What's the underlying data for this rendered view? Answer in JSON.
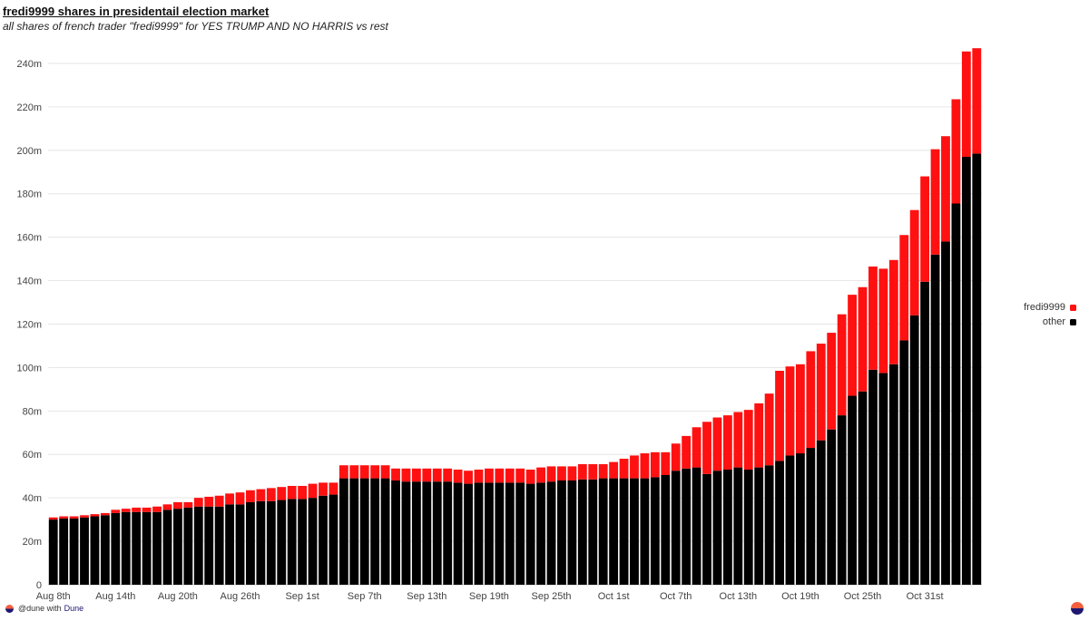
{
  "chart_data": {
    "type": "bar",
    "stacked": true,
    "title": "fredi9999 shares in presidentail election market",
    "subtitle": "all shares of french trader \"fredi9999\" for YES TRUMP AND NO HARRIS vs rest",
    "xlabel": "",
    "ylabel": "",
    "ylim": [
      0,
      250
    ],
    "y_unit": "m",
    "grid": true,
    "legend_position": "right",
    "yticks": [
      "0",
      "20m",
      "40m",
      "60m",
      "80m",
      "100m",
      "120m",
      "140m",
      "160m",
      "180m",
      "200m",
      "220m",
      "240m"
    ],
    "xticks": [
      "Aug 8th",
      "Aug 14th",
      "Aug 20th",
      "Aug 26th",
      "Sep 1st",
      "Sep 7th",
      "Sep 13th",
      "Sep 19th",
      "Sep 25th",
      "Oct 1st",
      "Oct 7th",
      "Oct 13th",
      "Oct 19th",
      "Oct 25th",
      "Oct 31st"
    ],
    "categories": [
      "2024-08-08",
      "2024-08-09",
      "2024-08-10",
      "2024-08-11",
      "2024-08-12",
      "2024-08-13",
      "2024-08-14",
      "2024-08-15",
      "2024-08-16",
      "2024-08-17",
      "2024-08-18",
      "2024-08-19",
      "2024-08-20",
      "2024-08-21",
      "2024-08-22",
      "2024-08-23",
      "2024-08-24",
      "2024-08-25",
      "2024-08-26",
      "2024-08-27",
      "2024-08-28",
      "2024-08-29",
      "2024-08-30",
      "2024-08-31",
      "2024-09-01",
      "2024-09-02",
      "2024-09-03",
      "2024-09-04",
      "2024-09-05",
      "2024-09-06",
      "2024-09-07",
      "2024-09-08",
      "2024-09-09",
      "2024-09-10",
      "2024-09-11",
      "2024-09-12",
      "2024-09-13",
      "2024-09-14",
      "2024-09-15",
      "2024-09-16",
      "2024-09-17",
      "2024-09-18",
      "2024-09-19",
      "2024-09-20",
      "2024-09-21",
      "2024-09-22",
      "2024-09-23",
      "2024-09-24",
      "2024-09-25",
      "2024-09-26",
      "2024-09-27",
      "2024-09-28",
      "2024-09-29",
      "2024-09-30",
      "2024-10-01",
      "2024-10-02",
      "2024-10-03",
      "2024-10-04",
      "2024-10-05",
      "2024-10-06",
      "2024-10-07",
      "2024-10-08",
      "2024-10-09",
      "2024-10-10",
      "2024-10-11",
      "2024-10-12",
      "2024-10-13",
      "2024-10-14",
      "2024-10-15",
      "2024-10-16",
      "2024-10-17",
      "2024-10-18",
      "2024-10-19",
      "2024-10-20",
      "2024-10-21",
      "2024-10-22",
      "2024-10-23",
      "2024-10-24",
      "2024-10-25",
      "2024-10-26",
      "2024-10-27",
      "2024-10-28",
      "2024-10-29",
      "2024-10-30",
      "2024-10-31",
      "2024-11-01",
      "2024-11-02",
      "2024-11-03",
      "2024-11-04",
      "2024-11-05"
    ],
    "series": [
      {
        "name": "other",
        "color": "#000000",
        "values": [
          30.0,
          30.5,
          30.5,
          31.0,
          31.5,
          32.0,
          33.0,
          33.5,
          33.5,
          33.5,
          33.5,
          34.5,
          35.0,
          35.5,
          36.0,
          36.0,
          36.0,
          37.0,
          37.0,
          38.0,
          38.5,
          38.5,
          39.0,
          39.5,
          39.5,
          40.0,
          41.0,
          41.5,
          49.0,
          49.0,
          49.0,
          49.0,
          49.0,
          48.0,
          47.5,
          47.5,
          47.5,
          47.5,
          47.5,
          47.0,
          46.5,
          47.0,
          47.0,
          47.0,
          47.0,
          47.0,
          46.5,
          47.0,
          47.5,
          48.0,
          48.0,
          48.5,
          48.5,
          49.0,
          49.0,
          49.0,
          49.0,
          49.0,
          49.5,
          50.5,
          52.5,
          53.5,
          54.0,
          51.0,
          52.5,
          53.0,
          54.0,
          53.0,
          54.0,
          55.0,
          57.0,
          59.5,
          60.5,
          63.0,
          66.5,
          71.5,
          78.0,
          87.0,
          89.0,
          99.0,
          97.5,
          101.5,
          112.5,
          124.0,
          139.5,
          152.0,
          158.0,
          175.5,
          197.0,
          198.5
        ]
      },
      {
        "name": "fredi9999",
        "color": "#ff1111",
        "values": [
          1.0,
          1.0,
          1.0,
          1.0,
          1.0,
          1.0,
          1.5,
          1.5,
          2.0,
          2.0,
          2.5,
          2.5,
          3.0,
          2.5,
          4.0,
          4.5,
          5.0,
          5.0,
          5.5,
          5.5,
          5.5,
          6.0,
          6.0,
          6.0,
          6.0,
          6.5,
          6.0,
          5.5,
          6.0,
          6.0,
          6.0,
          6.0,
          6.0,
          5.5,
          6.0,
          6.0,
          6.0,
          6.0,
          6.0,
          6.0,
          6.0,
          6.0,
          6.5,
          6.5,
          6.5,
          6.5,
          6.5,
          7.0,
          7.0,
          6.5,
          6.5,
          7.0,
          7.0,
          6.5,
          7.5,
          9.0,
          10.5,
          11.5,
          11.5,
          10.5,
          12.5,
          15.0,
          18.5,
          24.0,
          24.5,
          25.0,
          25.5,
          27.5,
          29.5,
          33.0,
          41.5,
          41.0,
          41.0,
          44.5,
          44.5,
          44.5,
          46.5,
          46.5,
          48.0,
          47.5,
          48.0,
          48.0,
          48.5,
          48.5,
          48.5,
          48.5,
          48.5,
          48.0,
          48.5,
          48.5
        ]
      }
    ]
  },
  "legend": {
    "items": [
      {
        "label": "fredi9999",
        "color": "#ff1111"
      },
      {
        "label": "other",
        "color": "#000000"
      }
    ]
  },
  "footer": {
    "text": "@dune with",
    "brand": "Dune"
  }
}
